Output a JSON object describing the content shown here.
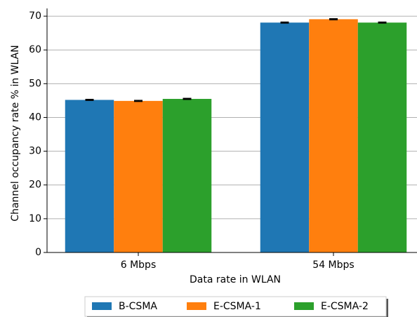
{
  "chart_data": {
    "type": "bar",
    "xlabel": "Data rate in WLAN",
    "ylabel": "Channel occupancy rate % in WLAN",
    "categories": [
      "6 Mbps",
      "54 Mbps"
    ],
    "series": [
      {
        "name": "B-CSMA",
        "color": "#1f77b4",
        "values": [
          45.2,
          68.1
        ],
        "errors": [
          0.15,
          0.15
        ]
      },
      {
        "name": "E-CSMA-1",
        "color": "#ff7f0e",
        "values": [
          44.9,
          69.1
        ],
        "errors": [
          0.15,
          0.15
        ]
      },
      {
        "name": "E-CSMA-2",
        "color": "#2ca02c",
        "values": [
          45.5,
          68.1
        ],
        "errors": [
          0.15,
          0.15
        ]
      }
    ],
    "ylim": [
      0,
      72.3
    ],
    "yticks": [
      0,
      10,
      20,
      30,
      40,
      50,
      60,
      70
    ],
    "grid": true,
    "legend": "lower center"
  }
}
